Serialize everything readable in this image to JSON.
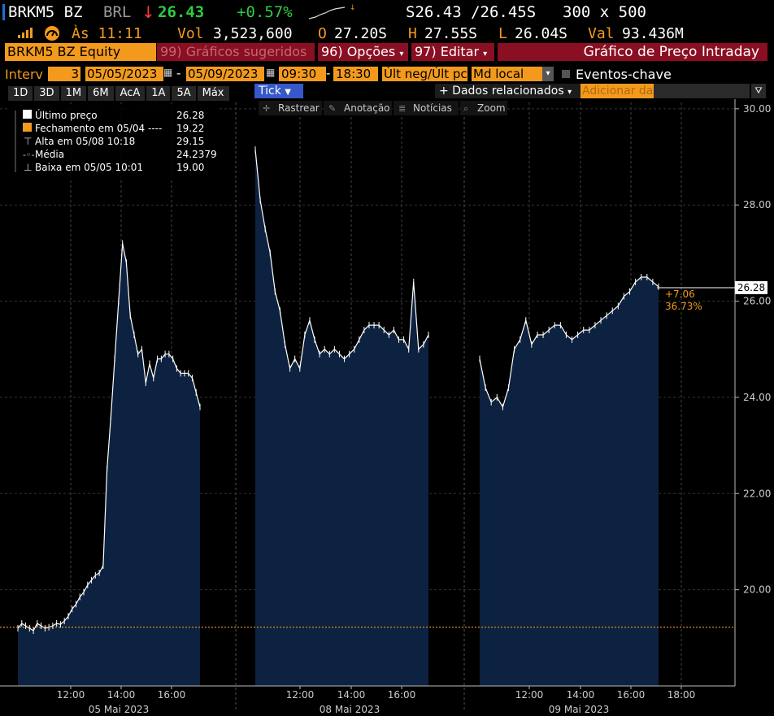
{
  "header": {
    "ticker": "BRKM5 BZ",
    "currency": "BRL",
    "last_price": "26.43",
    "change": "+0.57%",
    "bid_ask": "S26.43 /26.45S",
    "size": "300 x 500",
    "time_label": "Às 11:11",
    "vol_label": "Vol",
    "vol_value": "3,523,600",
    "open_label": "O",
    "open_value": "27.20S",
    "high_label": "H",
    "high_value": "27.55S",
    "low_label": "L",
    "low_value": "26.04S",
    "val_label": "Val",
    "val_value": "93.436M"
  },
  "toolbar": {
    "security": "BRKM5 BZ Equity",
    "suggested_num": "99)",
    "suggested_label": "Gráficos sugeridos",
    "options_num": "96)",
    "options_label": "Opções",
    "edit_num": "97)",
    "edit_label": "Editar",
    "title": "Gráfico de Preço Intraday"
  },
  "controls": {
    "interval_label": "Interv",
    "interval_value": "3",
    "start_date": "05/05/2023",
    "end_date": "05/09/2023",
    "start_time": "09:30",
    "end_time": "18:30",
    "field": "Últ neg/Últ pc",
    "market": "Md local",
    "key_events": "Eventos-chave"
  },
  "ranges": [
    "1D",
    "3D",
    "1M",
    "6M",
    "AcA",
    "1A",
    "5A",
    "Máx"
  ],
  "tick_label": "Tick",
  "related_label": "+ Dados relacionados",
  "add_placeholder": "Adicionar da",
  "chart_tools": [
    "Rastrear",
    "Anotação",
    "Notícias",
    "Zoom"
  ],
  "legend": [
    {
      "label": "Último preço",
      "value": "26.28"
    },
    {
      "label": "Fechamento em 05/04 ----",
      "value": "19.22"
    },
    {
      "label": "Alta em 05/08 10:18",
      "value": "29.15"
    },
    {
      "label": "Média",
      "value": "24.2379"
    },
    {
      "label": "Baixa em 05/05 10:01",
      "value": "19.00"
    }
  ],
  "last_tag": "26.28",
  "change_abs": "+7.06",
  "change_pct": "36.73%",
  "colors": {
    "orange": "#f39a1d",
    "area": "#0d2240",
    "red_bar": "#8a0f22",
    "green": "#2ecc40",
    "red": "#ff3b30"
  },
  "chart_data": {
    "type": "area",
    "y_ticks": [
      "30.00",
      "28.00",
      "26.00",
      "24.00",
      "22.00",
      "20.00"
    ],
    "ylim": [
      18.0,
      30.2
    ],
    "prev_close": 19.22,
    "time_ticks": [
      "12:00",
      "14:00",
      "16:00",
      "12:00",
      "14:00",
      "16:00",
      "12:00",
      "14:00",
      "16:00",
      "18:00"
    ],
    "day_labels": [
      "05 Mai 2023",
      "08 Mai 2023",
      "09 Mai 2023"
    ],
    "sessions": [
      {
        "day": "05 Mai 2023",
        "values": [
          19.2,
          19.3,
          19.25,
          19.2,
          19.15,
          19.3,
          19.25,
          19.2,
          19.22,
          19.25,
          19.3,
          19.28,
          19.35,
          19.45,
          19.6,
          19.7,
          19.85,
          19.95,
          20.1,
          20.2,
          20.3,
          20.35,
          20.5,
          22.5,
          23.6,
          24.8,
          26.0,
          27.2,
          26.8,
          25.7,
          25.3,
          24.9,
          25.0,
          24.3,
          24.7,
          24.4,
          24.8,
          24.8,
          24.9,
          24.9,
          24.8,
          24.6,
          24.5,
          24.5,
          24.5,
          24.4,
          24.1,
          23.8
        ]
      },
      {
        "day": "08 Mai 2023",
        "values": [
          29.15,
          28.1,
          27.5,
          27.0,
          26.2,
          25.8,
          25.1,
          24.6,
          24.8,
          24.6,
          25.3,
          25.6,
          25.2,
          24.9,
          25.0,
          24.9,
          25.0,
          24.9,
          24.8,
          24.9,
          25.0,
          25.2,
          25.4,
          25.5,
          25.5,
          25.5,
          25.4,
          25.3,
          25.4,
          25.2,
          25.2,
          25.0,
          26.4,
          25.0,
          25.1,
          25.3
        ]
      },
      {
        "day": "09 Mai 2023",
        "values": [
          24.8,
          24.2,
          23.9,
          24.0,
          23.8,
          24.2,
          25.0,
          25.2,
          25.6,
          25.1,
          25.3,
          25.3,
          25.4,
          25.5,
          25.5,
          25.3,
          25.2,
          25.3,
          25.4,
          25.4,
          25.5,
          25.6,
          25.7,
          25.8,
          25.9,
          26.1,
          26.2,
          26.4,
          26.5,
          26.5,
          26.4,
          26.3
        ]
      }
    ]
  }
}
